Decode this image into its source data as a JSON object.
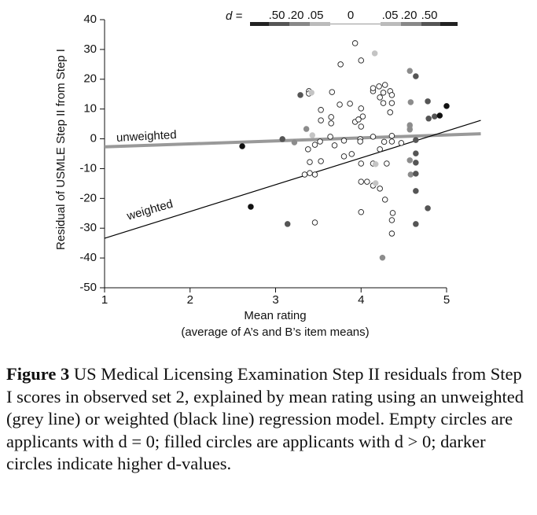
{
  "chart_data": {
    "type": "scatter",
    "xlabel": "Mean rating",
    "xlabel2": "(average of A’s and B’s item means)",
    "ylabel": "Residual of USMLE Step II from Step I",
    "xlim": [
      1,
      5
    ],
    "xticks": [
      1,
      2,
      3,
      4,
      5
    ],
    "ylim": [
      -50,
      40
    ],
    "yticks": [
      -50,
      -40,
      -30,
      -20,
      -10,
      0,
      10,
      20,
      30,
      40
    ],
    "legend": {
      "label": "d =",
      "ticks": [
        ".50",
        ".20",
        ".05",
        "0",
        ".05",
        ".20",
        ".50"
      ]
    },
    "series": [
      {
        "color": "#ffffff",
        "x": [
          3.93,
          4.0,
          3.76,
          3.39,
          3.39,
          3.66,
          3.53,
          3.65,
          3.53,
          3.65,
          3.75,
          3.87,
          3.93,
          3.97,
          4.02,
          4.0,
          4.14,
          4.14,
          4.21,
          4.28,
          4.26,
          4.34,
          4.36,
          4.22,
          4.26,
          4.36,
          4.34,
          4.0,
          3.64,
          3.8,
          3.99,
          4.14,
          4.36,
          4.36,
          3.38,
          3.46,
          3.52,
          3.69,
          3.89,
          3.99,
          4.22,
          4.27,
          3.4,
          3.53,
          3.8,
          4.0,
          4.14,
          4.3,
          4.47,
          3.4,
          3.34,
          3.46,
          4.0,
          4.07,
          4.14,
          4.22,
          4.28,
          4.37,
          4.36,
          4.36,
          4.0,
          3.46
        ],
        "values": [
          32.1,
          26.3,
          25.0,
          16.0,
          15.2,
          15.7,
          9.7,
          7.3,
          6.2,
          5.2,
          11.5,
          11.8,
          5.7,
          6.5,
          7.5,
          10.2,
          16.0,
          17.0,
          17.6,
          18.1,
          15.5,
          16.0,
          14.7,
          13.9,
          12.0,
          12.0,
          8.9,
          4.1,
          0.7,
          -0.6,
          -0.1,
          0.7,
          1.0,
          -0.9,
          -3.5,
          -2.0,
          -0.9,
          -2.2,
          -5.1,
          -0.9,
          -3.5,
          -1.0,
          -7.8,
          -7.5,
          -5.9,
          -8.3,
          -8.3,
          -8.3,
          -1.4,
          -11.5,
          -12.0,
          -12.0,
          -14.4,
          -14.4,
          -15.7,
          -16.7,
          -20.4,
          -24.9,
          -27.3,
          -31.8,
          -24.6,
          -28.1
        ]
      },
      {
        "color": "#c4c4c4",
        "x": [
          3.42,
          3.43,
          4.16,
          4.17,
          4.17,
          4.57
        ],
        "values": [
          15.5,
          1.2,
          28.7,
          -8.5,
          -14.9,
          3.9
        ]
      },
      {
        "color": "#8c8c8c",
        "x": [
          3.22,
          3.36,
          4.25,
          4.57,
          4.58,
          4.57,
          4.57,
          4.57,
          4.58
        ],
        "values": [
          -1.2,
          3.3,
          -39.9,
          22.8,
          12.3,
          4.6,
          3.1,
          -7.2,
          -12.0
        ]
      },
      {
        "color": "#555555",
        "x": [
          3.08,
          3.14,
          3.29,
          4.64,
          4.64,
          4.64,
          4.64,
          4.64,
          4.64,
          4.64,
          4.78,
          4.79,
          4.86,
          4.78
        ],
        "values": [
          -0.1,
          -28.6,
          14.7,
          21.0,
          -0.4,
          -4.9,
          -8.0,
          -11.7,
          -17.5,
          -28.6,
          12.6,
          6.8,
          7.5,
          -23.3
        ]
      },
      {
        "color": "#111111",
        "x": [
          2.61,
          2.71,
          4.92,
          5.0
        ],
        "values": [
          -2.5,
          -22.8,
          7.8,
          11.0
        ]
      }
    ],
    "lines": [
      {
        "name": "unweighted",
        "color": "#999999",
        "width": 4,
        "x": [
          1,
          5.4
        ],
        "values": [
          -2.7,
          1.7
        ]
      },
      {
        "name": "weighted",
        "color": "#000000",
        "width": 1.2,
        "x": [
          1,
          5.4
        ],
        "values": [
          -33.4,
          6.2
        ]
      }
    ]
  },
  "caption": {
    "label": "Figure 3",
    "text": "US Medical Licensing Examination Step II residuals from Step I scores in observed set 2, explained by mean rating using an unweighted (grey line) or weighted (black line) regression model. Empty circles are applicants with d = 0; filled circles are applicants with d > 0; darker circles indicate higher d-values."
  }
}
